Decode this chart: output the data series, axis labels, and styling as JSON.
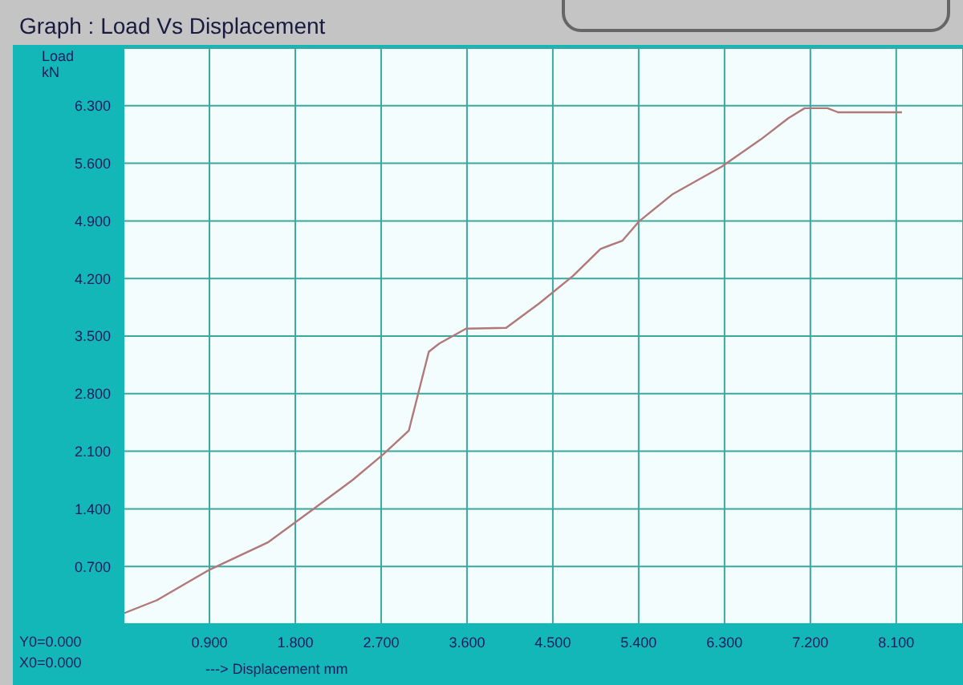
{
  "chart_data": {
    "type": "line",
    "title": "Graph : Load Vs Displacement",
    "xlabel": "---> Displacement mm",
    "ylabel": "Load kN",
    "annotations": [
      "Y0=0.000",
      "X0=0.000"
    ],
    "x": [
      0,
      0.35,
      0.9,
      1.51,
      1.98,
      2.4,
      2.72,
      2.99,
      3.2,
      3.31,
      3.59,
      4.01,
      4.36,
      4.71,
      5.0,
      5.23,
      5.4,
      5.75,
      6.27,
      6.68,
      6.97,
      7.14,
      7.38,
      7.49,
      8.16
    ],
    "series": [
      {
        "color": "#b07878",
        "values": [
          0.13,
          0.29,
          0.66,
          0.99,
          1.39,
          1.75,
          2.06,
          2.35,
          3.31,
          3.41,
          3.59,
          3.6,
          3.9,
          4.23,
          4.56,
          4.66,
          4.89,
          5.22,
          5.56,
          5.89,
          6.15,
          6.27,
          6.27,
          6.22,
          6.22
        ]
      }
    ],
    "xlim": [
      0,
      8.8
    ],
    "ylim": [
      0,
      7
    ],
    "xticks": [
      {
        "value": 0.9,
        "label": "0.900"
      },
      {
        "value": 1.8,
        "label": "1.800"
      },
      {
        "value": 2.7,
        "label": "2.700"
      },
      {
        "value": 3.6,
        "label": "3.600"
      },
      {
        "value": 4.5,
        "label": "4.500"
      },
      {
        "value": 5.4,
        "label": "5.400"
      },
      {
        "value": 6.3,
        "label": "6.300"
      },
      {
        "value": 7.2,
        "label": "7.200"
      },
      {
        "value": 8.1,
        "label": "8.100"
      }
    ],
    "yticks": [
      {
        "value": 0.7,
        "label": "0.700"
      },
      {
        "value": 1.4,
        "label": "1.400"
      },
      {
        "value": 2.1,
        "label": "2.100"
      },
      {
        "value": 2.8,
        "label": "2.800"
      },
      {
        "value": 3.5,
        "label": "3.500"
      },
      {
        "value": 4.2,
        "label": "4.200"
      },
      {
        "value": 4.9,
        "label": "4.900"
      },
      {
        "value": 5.6,
        "label": "5.600"
      },
      {
        "value": 6.3,
        "label": "6.300"
      }
    ],
    "grid": true,
    "marker": "none",
    "line_style": "solid"
  }
}
